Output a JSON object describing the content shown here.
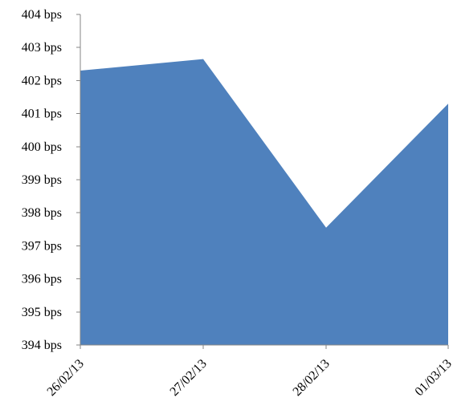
{
  "chart_data": {
    "type": "area",
    "title": "",
    "xlabel": "",
    "ylabel": "",
    "categories": [
      "26/02/13",
      "27/02/13",
      "28/02/13",
      "01/03/13"
    ],
    "series": [
      {
        "values": [
          402.3,
          402.65,
          397.55,
          401.3
        ],
        "color": "#4F81BD"
      }
    ],
    "ylim": [
      394,
      404
    ],
    "y_step": 1,
    "y_unit_suffix": " bps",
    "y_tick_labels": [
      "394 bps",
      "395 bps",
      "396 bps",
      "397 bps",
      "398 bps",
      "399 bps",
      "400 bps",
      "401 bps",
      "402 bps",
      "403 bps",
      "404 bps"
    ],
    "x_tick_labels": [
      "26/02/13",
      "27/02/13",
      "28/02/13",
      "01/03/13"
    ],
    "grid": false,
    "legend": "none",
    "x_label_rotation": -45,
    "axis_color": "#868686"
  }
}
